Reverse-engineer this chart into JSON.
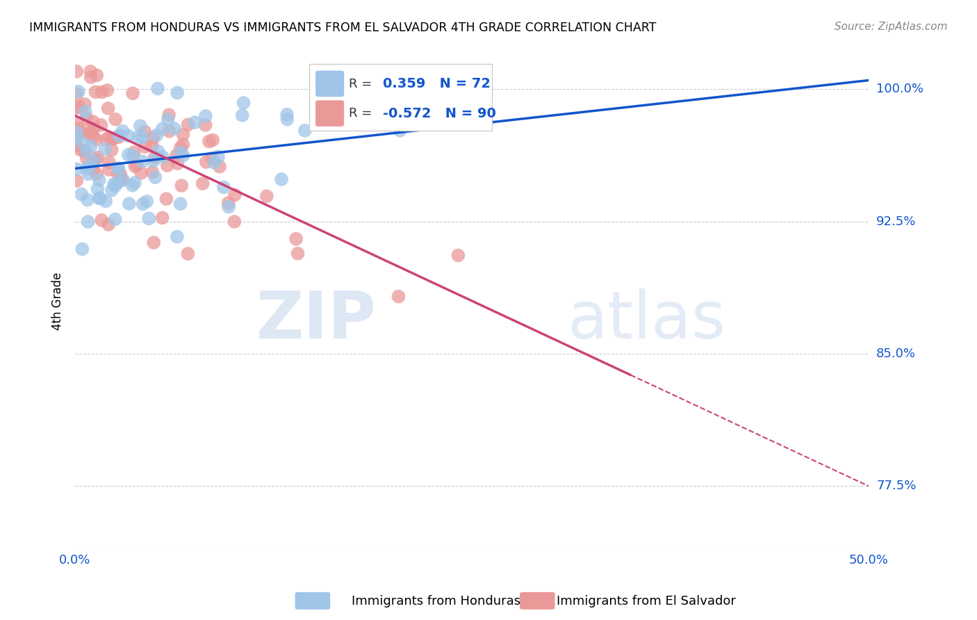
{
  "title": "IMMIGRANTS FROM HONDURAS VS IMMIGRANTS FROM EL SALVADOR 4TH GRADE CORRELATION CHART",
  "source": "Source: ZipAtlas.com",
  "ylabel": "4th Grade",
  "yticks": [
    0.775,
    0.85,
    0.925,
    1.0
  ],
  "ytick_labels": [
    "77.5%",
    "85.0%",
    "92.5%",
    "100.0%"
  ],
  "xlim": [
    0.0,
    0.5
  ],
  "ylim": [
    0.74,
    1.02
  ],
  "legend_r_honduras": "0.359",
  "legend_n_honduras": "72",
  "legend_r_elsalvador": "-0.572",
  "legend_n_elsalvador": "90",
  "color_honduras": "#9fc5e8",
  "color_elsalvador": "#ea9999",
  "color_line_honduras": "#1155cc",
  "color_line_elsalvador": "#cc4477",
  "background_color": "#ffffff",
  "grid_color": "#cccccc",
  "hon_line_x0": 0.0,
  "hon_line_y0": 0.955,
  "hon_line_x1": 0.5,
  "hon_line_y1": 1.005,
  "sal_line_x0": 0.0,
  "sal_line_y0": 0.985,
  "sal_line_x1": 0.5,
  "sal_line_y1": 0.775
}
